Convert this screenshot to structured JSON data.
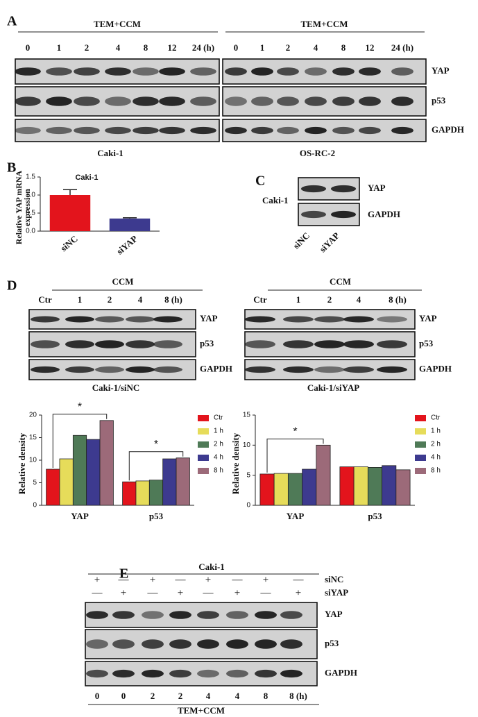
{
  "panel_labels": [
    "A",
    "B",
    "C",
    "D",
    "E"
  ],
  "blots": {
    "A": {
      "groups": [
        {
          "header": "TEM+CCM",
          "lanes": [
            "0",
            "1",
            "2",
            "4",
            "8",
            "12",
            "24 (h)"
          ],
          "caption": "Caki-1"
        },
        {
          "header": "TEM+CCM",
          "lanes": [
            "0",
            "1",
            "2",
            "4",
            "8",
            "12",
            "24 (h)"
          ],
          "caption": "OS-RC-2"
        }
      ],
      "bands": [
        "YAP",
        "p53",
        "GAPDH"
      ]
    },
    "C": {
      "cell_line": "Caki-1",
      "lanes": [
        "siNC",
        "siYAP"
      ],
      "bands": [
        "YAP",
        "GAPDH"
      ]
    },
    "D": {
      "groups": [
        {
          "header": "CCM",
          "lanes": [
            "Ctr",
            "1",
            "2",
            "4",
            "8 (h)"
          ],
          "bands": [
            "YAP",
            "p53",
            "GAPDH"
          ],
          "caption": "Caki-1/siNC"
        },
        {
          "header": "CCM",
          "lanes": [
            "Ctr",
            "1",
            "2",
            "4",
            "8 (h)"
          ],
          "bands": [
            "YAP",
            "p53",
            "GAPDH"
          ],
          "caption": "Caki-1/siYAP"
        }
      ]
    },
    "E": {
      "header": "Caki-1",
      "treatments": [
        {
          "name": "siNC",
          "signs": [
            "+",
            "—",
            "+",
            "—",
            "+",
            "—",
            "+",
            "—"
          ]
        },
        {
          "name": "siYAP",
          "signs": [
            "—",
            "+",
            "—",
            "+",
            "—",
            "+",
            "—",
            "+"
          ]
        }
      ],
      "bands": [
        "YAP",
        "p53",
        "GAPDH"
      ],
      "lanes": [
        "0",
        "0",
        "2",
        "2",
        "4",
        "4",
        "8",
        "8 (h)"
      ],
      "caption": "TEM+CCM"
    }
  },
  "chart_data": [
    {
      "type": "bar",
      "title": "Caki-1",
      "y_label_lines": [
        "Relative YAP mRNA",
        "expression"
      ],
      "categories": [
        "siNC",
        "siYAP"
      ],
      "values": [
        1.0,
        0.35
      ],
      "errors": [
        0.15,
        0.02
      ],
      "colors": [
        "#e3141c",
        "#3d3a8f"
      ],
      "ylim": [
        0,
        1.5
      ],
      "yticks": [
        {
          "value": 0,
          "label": "0.0"
        },
        0.5,
        {
          "value": 1,
          "label": "1.0"
        },
        1.5
      ]
    },
    {
      "type": "grouped-bar",
      "y_label": "Relative density",
      "categories": [
        "YAP",
        "p53"
      ],
      "series": [
        {
          "name": "Ctr",
          "color": "#e3141c",
          "values": [
            8.0,
            5.2
          ]
        },
        {
          "name": "1 h",
          "color": "#e6dc5a",
          "values": [
            10.3,
            5.4
          ]
        },
        {
          "name": "2 h",
          "color": "#4f7a57",
          "values": [
            15.5,
            5.6
          ]
        },
        {
          "name": "4 h",
          "color": "#3d3a8f",
          "values": [
            14.6,
            10.3
          ]
        },
        {
          "name": "8 h",
          "color": "#9c6a79",
          "values": [
            18.8,
            10.5
          ]
        }
      ],
      "annotations": [
        "*",
        "*"
      ],
      "ylim": [
        0,
        20
      ],
      "yticks": [
        0,
        5,
        10,
        15,
        20
      ]
    },
    {
      "type": "grouped-bar",
      "y_label": "Relative density",
      "categories": [
        "YAP",
        "p53"
      ],
      "series": [
        {
          "name": "Ctr",
          "color": "#e3141c",
          "values": [
            5.2,
            6.4
          ]
        },
        {
          "name": "1 h",
          "color": "#e6dc5a",
          "values": [
            5.3,
            6.4
          ]
        },
        {
          "name": "2 h",
          "color": "#4f7a57",
          "values": [
            5.3,
            6.3
          ]
        },
        {
          "name": "4 h",
          "color": "#3d3a8f",
          "values": [
            6.0,
            6.6
          ]
        },
        {
          "name": "8 h",
          "color": "#9c6a79",
          "values": [
            10.0,
            5.9
          ]
        }
      ],
      "annotations": [
        "*"
      ],
      "ylim": [
        0,
        15
      ],
      "yticks": [
        0,
        5,
        10,
        15
      ]
    }
  ]
}
